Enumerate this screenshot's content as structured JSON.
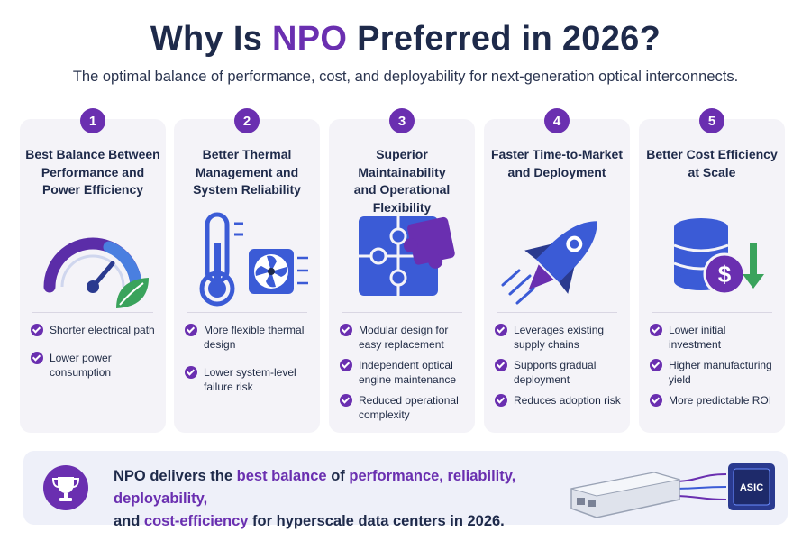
{
  "header": {
    "title_pre": "Why Is ",
    "title_accent": "NPO",
    "title_post": " Preferred in 2026?",
    "subtitle": "The optimal balance of performance, cost, and deployability for next-generation optical interconnects."
  },
  "cards": [
    {
      "number": "1",
      "title_lines": [
        "Best Balance Between",
        "Performance and",
        "Power Efficiency"
      ],
      "icon": "gauge-leaf-icon",
      "bullets": [
        "Shorter electrical path",
        "Lower power consumption"
      ]
    },
    {
      "number": "2",
      "title_lines": [
        "Better Thermal",
        "Management and",
        "System Reliability"
      ],
      "icon": "thermometer-fan-icon",
      "bullets": [
        "More flexible thermal design",
        "Lower system-level failure risk"
      ]
    },
    {
      "number": "3",
      "title_lines": [
        "Superior Maintainability",
        "and Operational",
        "Flexibility"
      ],
      "icon": "puzzle-icon",
      "bullets": [
        "Modular design for easy replacement",
        "Independent optical engine maintenance",
        "Reduced operational complexity"
      ]
    },
    {
      "number": "4",
      "title_lines": [
        "Faster Time-to-Market",
        "and Deployment"
      ],
      "icon": "rocket-icon",
      "bullets": [
        "Leverages existing supply chains",
        "Supports gradual deployment",
        "Reduces adoption risk"
      ]
    },
    {
      "number": "5",
      "title_lines": [
        "Better Cost Efficiency",
        "at Scale"
      ],
      "icon": "coins-dollar-icon",
      "bullets": [
        "Lower initial investment",
        "Higher manufacturing yield",
        "More predictable ROI"
      ]
    }
  ],
  "banner": {
    "t1": "NPO delivers the ",
    "h1": "best balance",
    "t2": " of ",
    "h2": "performance, reliability, deployability,",
    "t3": "and ",
    "h3": "cost-efficiency",
    "t4": " for hyperscale data centers in 2026.",
    "chip_label": "ASIC"
  },
  "colors": {
    "accent": "#6a2fb0",
    "blue": "#3b5bd6",
    "dark": "#1e2a4a",
    "green": "#3aa35c"
  }
}
